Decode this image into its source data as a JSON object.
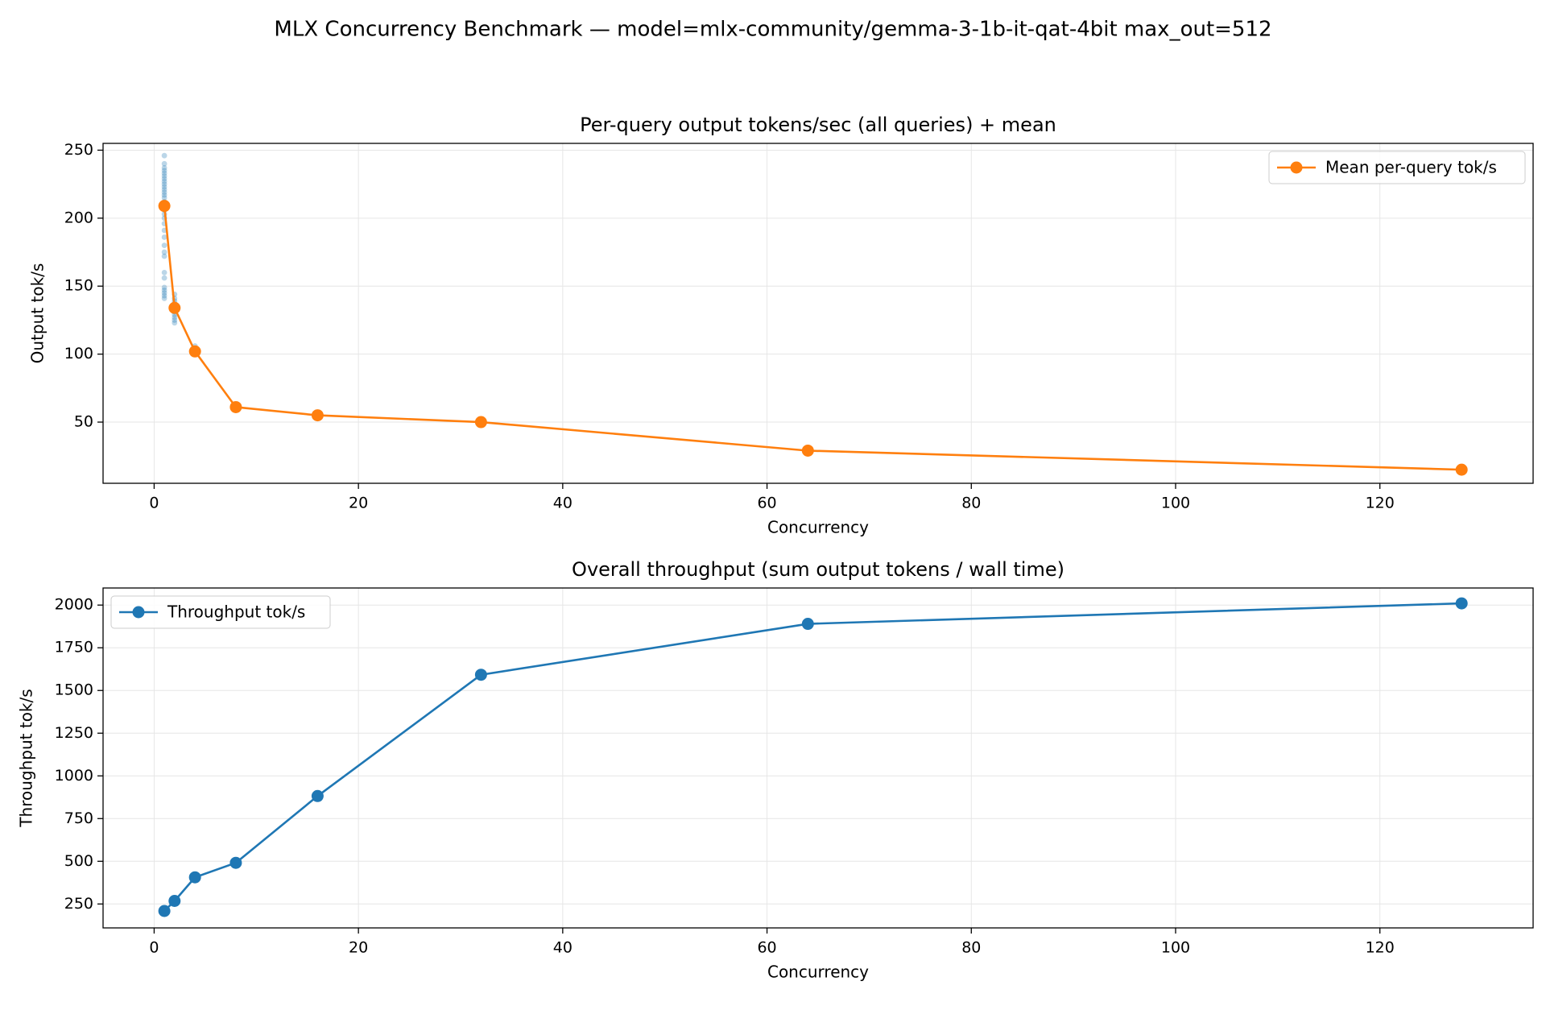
{
  "figure": {
    "suptitle": "MLX Concurrency Benchmark — model=mlx-community/gemma-3-1b-it-qat-4bit max_out=512"
  },
  "colors": {
    "blue": "#1f77b4",
    "orange": "#ff7f0e",
    "grid": "#e6e6e6"
  },
  "chart_data": [
    {
      "type": "line",
      "title": "Per-query output tokens/sec (all queries) + mean",
      "xlabel": "Concurrency",
      "ylabel": "Output tok/s",
      "xlim": [
        -5,
        135
      ],
      "ylim": [
        5,
        255
      ],
      "xticks": [
        0,
        20,
        40,
        60,
        80,
        100,
        120
      ],
      "yticks": [
        50,
        100,
        150,
        200,
        250
      ],
      "grid": true,
      "legend_position": "upper-right",
      "series": [
        {
          "name": "Mean per-query tok/s",
          "color": "#ff7f0e",
          "x": [
            1,
            2,
            4,
            8,
            16,
            32,
            64,
            128
          ],
          "y": [
            209,
            134,
            102,
            61,
            55,
            50,
            29,
            15
          ]
        }
      ],
      "scatter": {
        "color": "#1f77b4",
        "points": [
          {
            "x": 1,
            "y": 246
          },
          {
            "x": 1,
            "y": 240
          },
          {
            "x": 1,
            "y": 237
          },
          {
            "x": 1,
            "y": 235
          },
          {
            "x": 1,
            "y": 233
          },
          {
            "x": 1,
            "y": 231
          },
          {
            "x": 1,
            "y": 229
          },
          {
            "x": 1,
            "y": 227
          },
          {
            "x": 1,
            "y": 225
          },
          {
            "x": 1,
            "y": 223
          },
          {
            "x": 1,
            "y": 221
          },
          {
            "x": 1,
            "y": 219
          },
          {
            "x": 1,
            "y": 217
          },
          {
            "x": 1,
            "y": 215
          },
          {
            "x": 1,
            "y": 212
          },
          {
            "x": 1,
            "y": 209
          },
          {
            "x": 1,
            "y": 206
          },
          {
            "x": 1,
            "y": 203
          },
          {
            "x": 1,
            "y": 200
          },
          {
            "x": 1,
            "y": 196
          },
          {
            "x": 1,
            "y": 191
          },
          {
            "x": 1,
            "y": 186
          },
          {
            "x": 1,
            "y": 180
          },
          {
            "x": 1,
            "y": 175
          },
          {
            "x": 1,
            "y": 172
          },
          {
            "x": 1,
            "y": 160
          },
          {
            "x": 1,
            "y": 156
          },
          {
            "x": 1,
            "y": 149
          },
          {
            "x": 1,
            "y": 147
          },
          {
            "x": 1,
            "y": 145
          },
          {
            "x": 1,
            "y": 143
          },
          {
            "x": 1,
            "y": 141
          },
          {
            "x": 2,
            "y": 144
          },
          {
            "x": 2,
            "y": 141
          },
          {
            "x": 2,
            "y": 139
          },
          {
            "x": 2,
            "y": 137
          },
          {
            "x": 2,
            "y": 135
          },
          {
            "x": 2,
            "y": 133
          },
          {
            "x": 2,
            "y": 131
          },
          {
            "x": 2,
            "y": 129
          },
          {
            "x": 2,
            "y": 127
          },
          {
            "x": 2,
            "y": 125
          },
          {
            "x": 2,
            "y": 123
          },
          {
            "x": 4,
            "y": 106
          },
          {
            "x": 4,
            "y": 104
          },
          {
            "x": 4,
            "y": 102
          },
          {
            "x": 4,
            "y": 100
          },
          {
            "x": 8,
            "y": 62
          },
          {
            "x": 8,
            "y": 61
          },
          {
            "x": 8,
            "y": 60
          },
          {
            "x": 16,
            "y": 56
          },
          {
            "x": 16,
            "y": 55
          },
          {
            "x": 16,
            "y": 54
          },
          {
            "x": 32,
            "y": 51
          },
          {
            "x": 32,
            "y": 50
          },
          {
            "x": 32,
            "y": 49
          },
          {
            "x": 64,
            "y": 30
          },
          {
            "x": 64,
            "y": 29
          },
          {
            "x": 64,
            "y": 28
          },
          {
            "x": 128,
            "y": 16
          },
          {
            "x": 128,
            "y": 15
          },
          {
            "x": 128,
            "y": 14
          }
        ]
      }
    },
    {
      "type": "line",
      "title": "Overall throughput (sum output tokens / wall time)",
      "xlabel": "Concurrency",
      "ylabel": "Throughput tok/s",
      "xlim": [
        -5,
        135
      ],
      "ylim": [
        110,
        2100
      ],
      "xticks": [
        0,
        20,
        40,
        60,
        80,
        100,
        120
      ],
      "yticks": [
        250,
        500,
        750,
        1000,
        1250,
        1500,
        1750,
        2000
      ],
      "grid": true,
      "legend_position": "upper-left",
      "series": [
        {
          "name": "Throughput tok/s",
          "color": "#1f77b4",
          "x": [
            1,
            2,
            4,
            8,
            16,
            32,
            64,
            128
          ],
          "y": [
            209,
            268,
            406,
            491,
            882,
            1592,
            1890,
            2010
          ]
        }
      ]
    }
  ]
}
